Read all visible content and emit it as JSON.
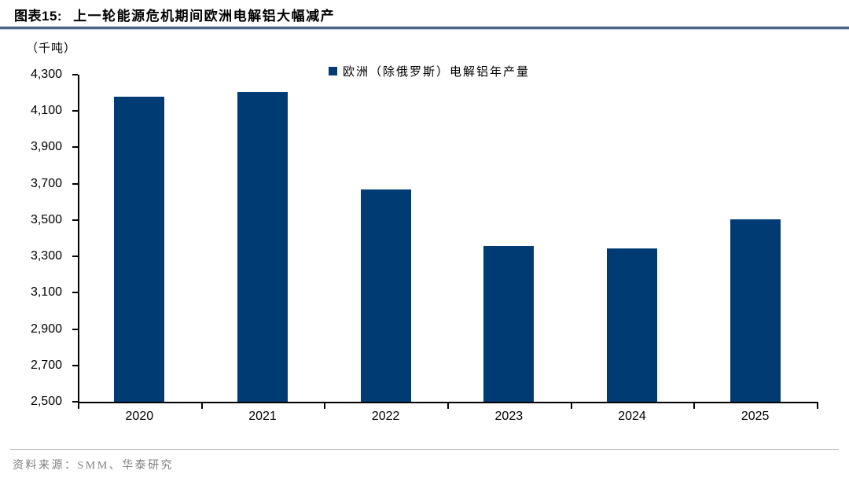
{
  "header": {
    "figure_label": "图表15:",
    "title": "上一轮能源危机期间欧洲电解铝大幅减产"
  },
  "chart_data": {
    "type": "bar",
    "title": "上一轮能源危机期间欧洲电解铝大幅减产",
    "unit_label": "（千吨）",
    "categories": [
      "2020",
      "2021",
      "2022",
      "2023",
      "2024",
      "2025"
    ],
    "series": [
      {
        "name": "欧洲（除俄罗斯）电解铝年产量",
        "values": [
          4180,
          4205,
          3670,
          3355,
          3345,
          3505
        ]
      }
    ],
    "ylabel": "千吨",
    "ylim": [
      2500,
      4300
    ],
    "ytick_step": 200,
    "ytick_labels": [
      "2,500",
      "2,700",
      "2,900",
      "3,100",
      "3,300",
      "3,500",
      "3,700",
      "3,900",
      "4,100",
      "4,300"
    ],
    "grid": false,
    "legend_position": "top-center",
    "bar_color": "#003B73",
    "axis_color": "#000000"
  },
  "legend": {
    "label": "欧洲（除俄罗斯）电解铝年产量",
    "marker_color": "#003B73"
  },
  "footer": {
    "source": "资料来源：SMM、华泰研究"
  }
}
